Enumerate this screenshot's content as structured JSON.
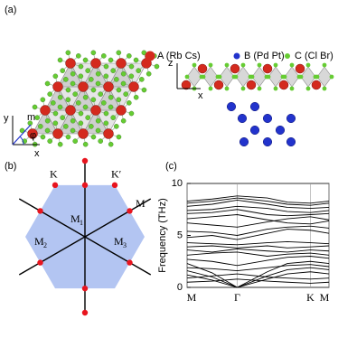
{
  "panel_labels": [
    "(a)",
    "(b)",
    "(c)"
  ],
  "structure": {
    "legend": [
      {
        "label": "A (Rb Cs)",
        "color": "#d42a1e"
      },
      {
        "label": "B (Pd Pt)",
        "color": "#2233cc"
      },
      {
        "label": "C (Cl Br)",
        "color": "#66cc33"
      }
    ],
    "top_axes": {
      "y": "y",
      "m": "m",
      "phi": "φ",
      "x": "x"
    },
    "side_axes": {
      "z": "z",
      "x": "x"
    }
  },
  "bz": {
    "color": "#b3c5f2",
    "point_labels": {
      "K": "K",
      "Kp": "K′",
      "M": "M"
    },
    "mirrors": [
      {
        "main": "M",
        "sub": "1"
      },
      {
        "main": "M",
        "sub": "2"
      },
      {
        "main": "M",
        "sub": "3"
      }
    ]
  },
  "chart_data": {
    "type": "line",
    "y_label": "Frequency (THz)",
    "x": [
      0,
      0.5,
      1,
      1.6,
      2.0,
      2.46,
      2.83
    ],
    "xlim": [
      0,
      2.83
    ],
    "xticks": [
      {
        "value": 0,
        "label": "M"
      },
      {
        "value": 1,
        "label": "Γ"
      },
      {
        "value": 2.46,
        "label": "K"
      },
      {
        "value": 2.83,
        "label": "M"
      }
    ],
    "ylim": [
      0,
      10
    ],
    "yticks": [
      0,
      5,
      10
    ],
    "series": [
      {
        "color": "#000",
        "values": [
          1.2,
          0.7,
          0,
          0.8,
          1.3,
          1.5,
          1.3
        ]
      },
      {
        "color": "#000",
        "values": [
          1.6,
          1.0,
          0,
          1.1,
          1.7,
          1.9,
          1.7
        ]
      },
      {
        "color": "#000",
        "values": [
          2.3,
          1.4,
          0,
          1.5,
          2.3,
          2.5,
          2.3
        ]
      },
      {
        "color": "#000",
        "values": [
          2.7,
          2.5,
          2.1,
          2.6,
          2.9,
          3.0,
          2.8
        ]
      },
      {
        "color": "#000",
        "values": [
          3.1,
          3.3,
          3.4,
          3.0,
          3.2,
          3.3,
          3.1
        ]
      },
      {
        "color": "#000",
        "values": [
          3.6,
          3.4,
          3.7,
          3.5,
          3.4,
          3.6,
          3.5
        ]
      },
      {
        "color": "#000",
        "values": [
          3.9,
          4.0,
          3.8,
          4.0,
          3.8,
          3.9,
          4.0
        ]
      },
      {
        "color": "#000",
        "values": [
          0.5,
          0.6,
          0.8,
          0.6,
          0.5,
          0.4,
          0.5
        ]
      },
      {
        "color": "#000",
        "values": [
          0.9,
          1.1,
          1.3,
          1.0,
          0.9,
          0.8,
          0.9
        ]
      },
      {
        "color": "#000",
        "values": [
          1.9,
          1.8,
          1.6,
          1.9,
          2.1,
          2.2,
          2.0
        ]
      },
      {
        "color": "#000",
        "values": [
          4.3,
          4.2,
          4.1,
          4.3,
          4.4,
          4.3,
          4.2
        ]
      },
      {
        "color": "#000",
        "values": [
          4.8,
          5.0,
          4.6,
          5.2,
          5.6,
          5.5,
          5.2
        ]
      },
      {
        "color": "#000",
        "values": [
          5.4,
          5.3,
          5.0,
          5.6,
          5.8,
          5.9,
          5.7
        ]
      },
      {
        "color": "#000",
        "values": [
          6.2,
          6.0,
          5.8,
          6.3,
          6.6,
          6.8,
          6.5
        ]
      },
      {
        "color": "#000",
        "values": [
          6.6,
          6.8,
          7.0,
          6.5,
          6.2,
          6.1,
          6.4
        ]
      },
      {
        "color": "#000",
        "values": [
          7.1,
          7.2,
          7.5,
          7.0,
          6.9,
          7.0,
          7.1
        ]
      },
      {
        "color": "#000",
        "values": [
          7.4,
          7.5,
          7.8,
          7.6,
          7.3,
          7.2,
          7.4
        ]
      },
      {
        "color": "#000",
        "values": [
          7.8,
          8.0,
          8.4,
          8.0,
          7.7,
          7.6,
          7.7
        ]
      },
      {
        "color": "#000",
        "values": [
          8.1,
          8.3,
          8.6,
          8.3,
          8.0,
          7.9,
          8.1
        ]
      },
      {
        "color": "#000",
        "values": [
          8.3,
          8.5,
          8.8,
          8.6,
          8.2,
          8.1,
          8.3
        ]
      }
    ]
  }
}
